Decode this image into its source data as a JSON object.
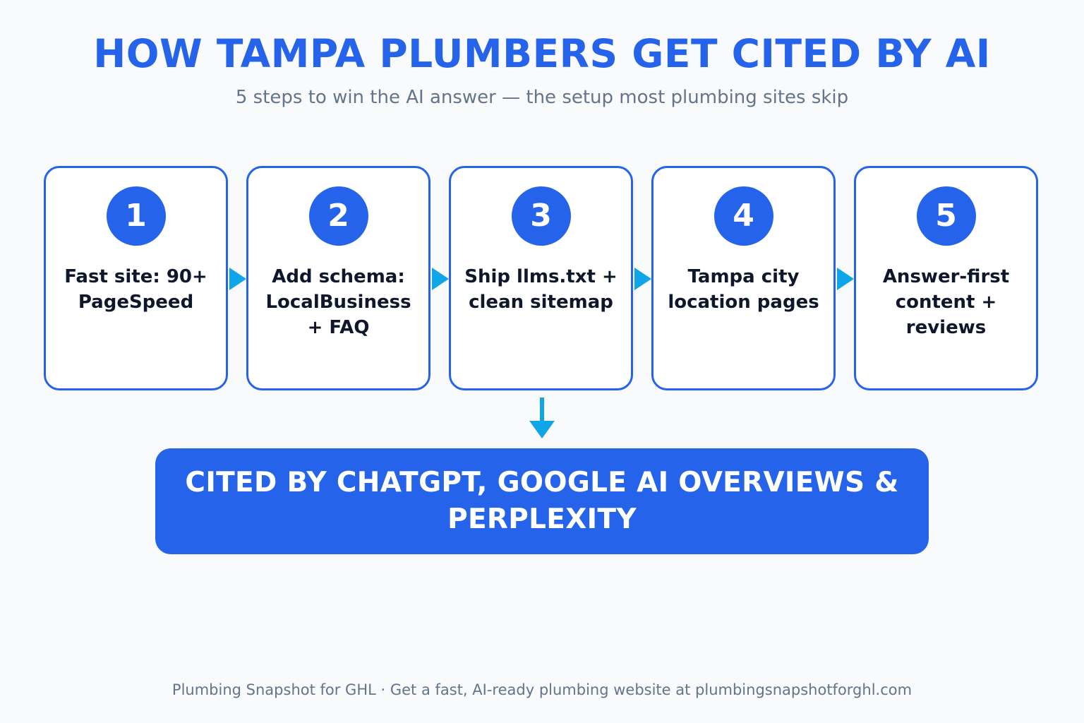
{
  "header": {
    "title": "HOW TAMPA PLUMBERS GET CITED BY AI",
    "subtitle": "5 steps to win the AI answer — the setup most plumbing sites skip"
  },
  "steps": [
    {
      "number": "1",
      "label": "Fast site: 90+ PageSpeed"
    },
    {
      "number": "2",
      "label": "Add schema: LocalBusiness + FAQ"
    },
    {
      "number": "3",
      "label": "Ship llms.txt + clean sitemap"
    },
    {
      "number": "4",
      "label": "Tampa city location pages"
    },
    {
      "number": "5",
      "label": "Answer-first content + reviews"
    }
  ],
  "result": {
    "text": "CITED BY CHATGPT, GOOGLE AI OVERVIEWS & PERPLEXITY"
  },
  "footer": {
    "text": "Plumbing Snapshot for GHL · Get a fast, AI-ready plumbing website at plumbingsnapshotforghl.com"
  },
  "colors": {
    "accent": "#2563eb",
    "arrow": "#0ea5e9",
    "background": "#f8fafc",
    "text_dark": "#0f172a",
    "text_muted": "#64748b"
  }
}
